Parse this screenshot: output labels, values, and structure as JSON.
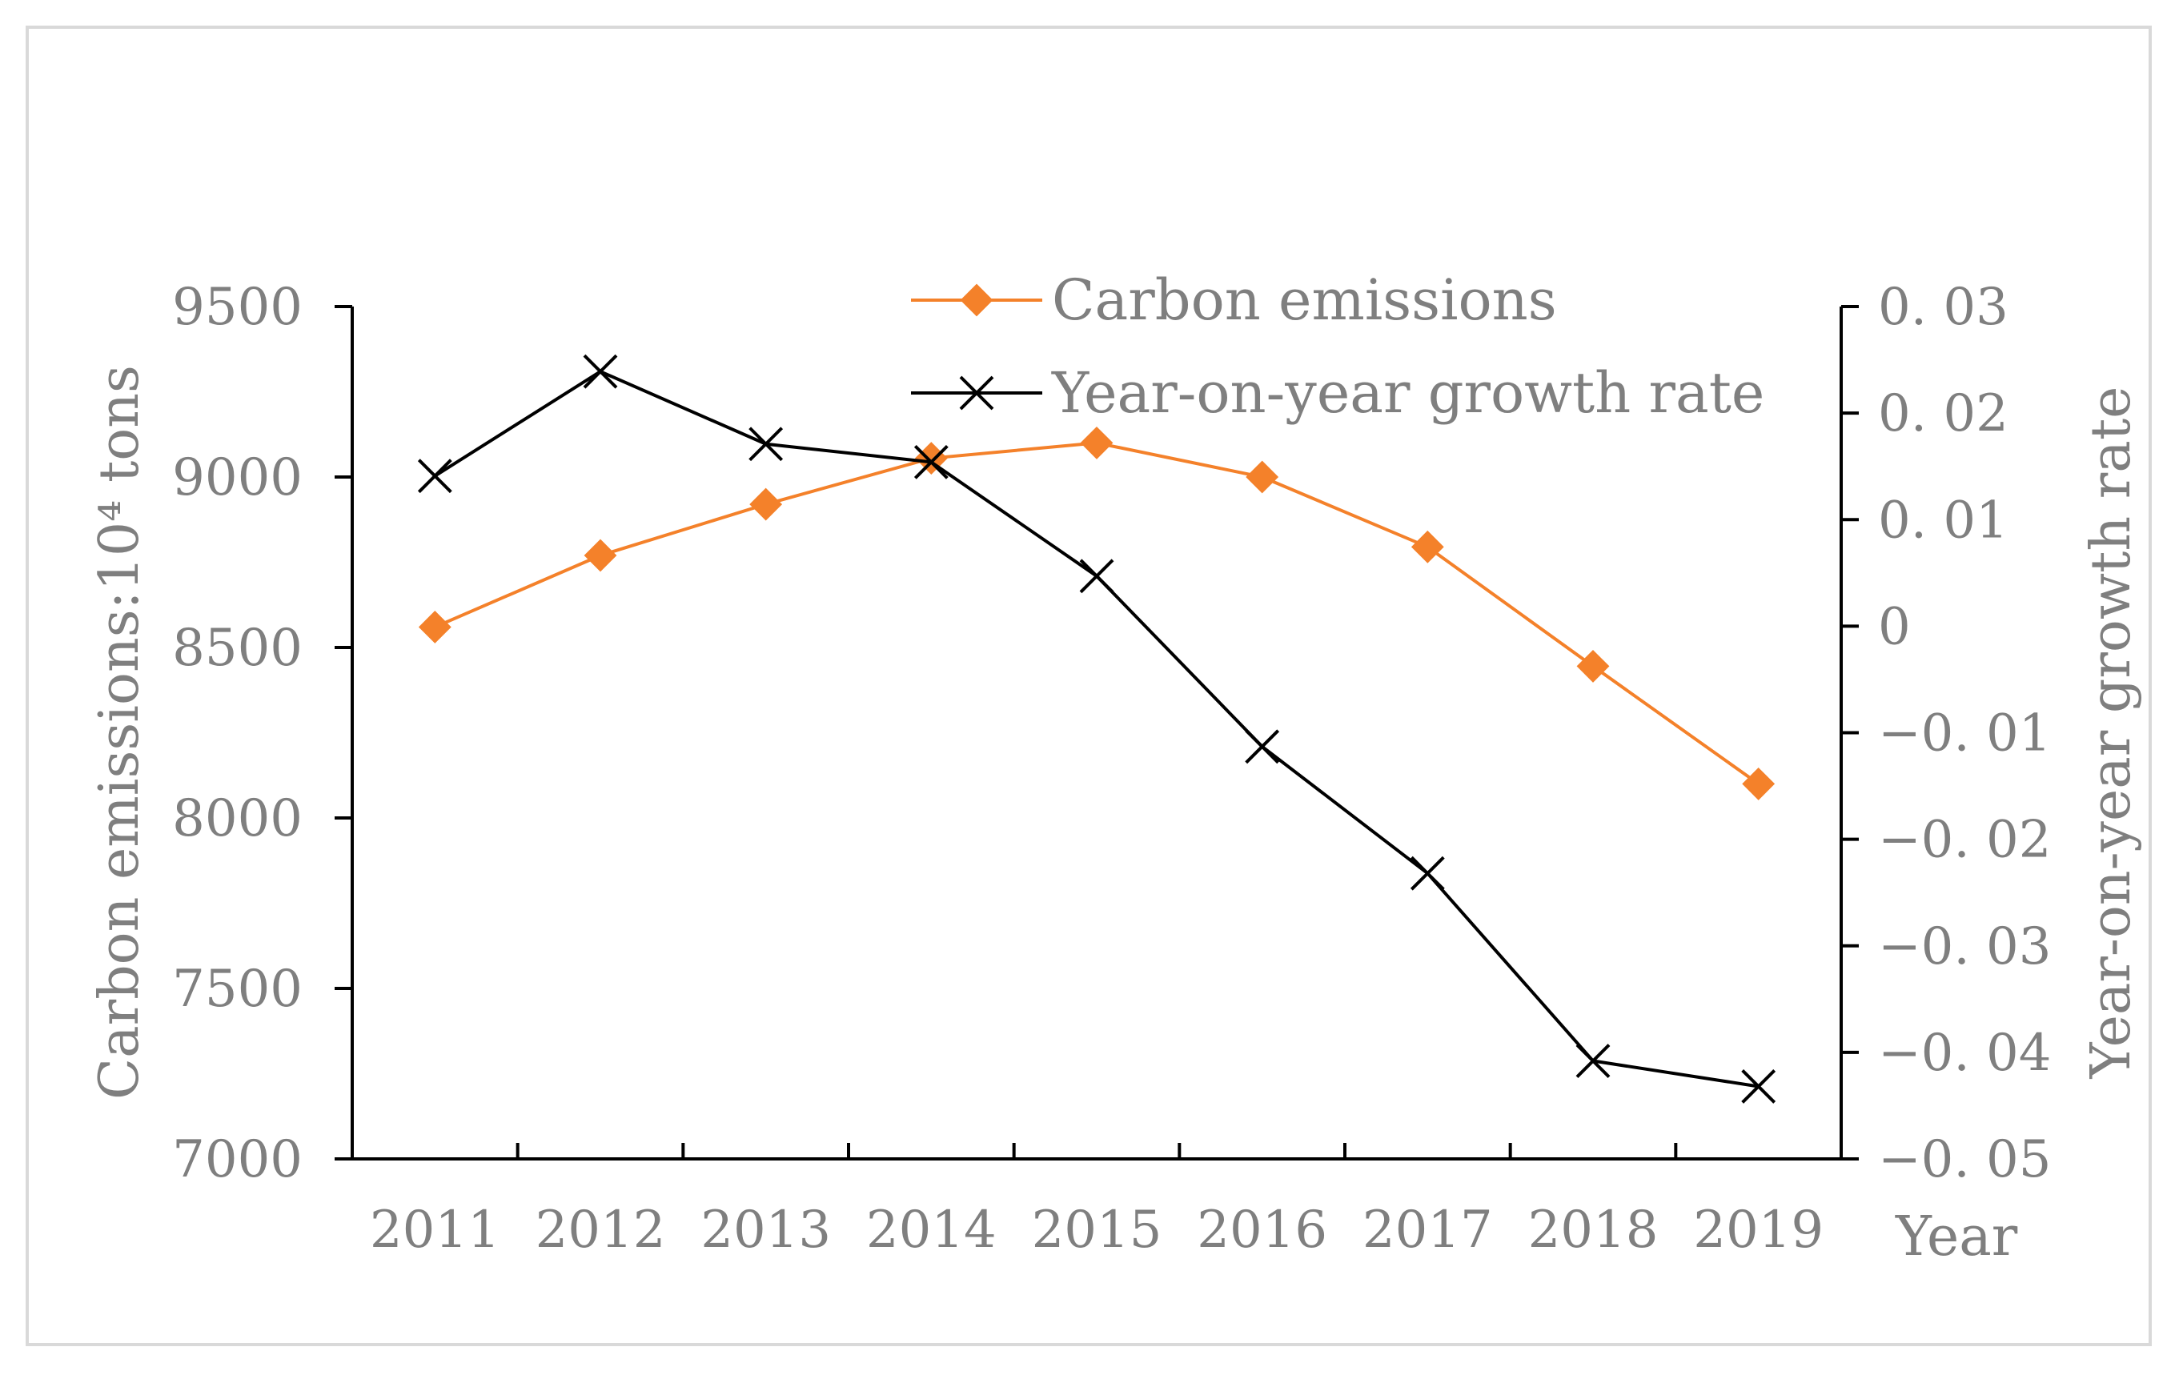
{
  "chart_data": {
    "type": "line",
    "title": "",
    "categories": [
      "2011",
      "2012",
      "2013",
      "2014",
      "2015",
      "2016",
      "2017",
      "2018",
      "2019"
    ],
    "xlabel": "Year",
    "ylabel": "Carbon emissions:10⁴ tons",
    "ylabel_right": "Year-on-year growth rate",
    "ylim": [
      7000,
      9500
    ],
    "yticks": [
      7000,
      7500,
      8000,
      8500,
      9000,
      9500
    ],
    "ylim_right": [
      -0.05,
      0.03
    ],
    "yticks_right": [
      -0.05,
      -0.04,
      -0.03,
      -0.02,
      -0.01,
      0,
      0.01,
      0.02,
      0.03
    ],
    "ytick_labels_right": [
      "−0. 05",
      "−0. 04",
      "−0. 03",
      "−0. 02",
      "−0. 01",
      "0",
      "0. 01",
      "0. 02",
      "0. 03"
    ],
    "grid": false,
    "legend_position": "top-center",
    "series": [
      {
        "name": "Carbon emissions",
        "axis": "left",
        "color": "#f4812a",
        "marker": "diamond",
        "values": [
          8560,
          8770,
          8920,
          9055,
          9100,
          9000,
          8795,
          8445,
          8100
        ]
      },
      {
        "name": "Year-on-year growth rate",
        "axis": "right",
        "color": "#000000",
        "marker": "x",
        "values": [
          0.0141,
          0.0239,
          0.0171,
          0.0154,
          0.0047,
          -0.0113,
          -0.0232,
          -0.0408,
          -0.0432
        ]
      }
    ]
  }
}
